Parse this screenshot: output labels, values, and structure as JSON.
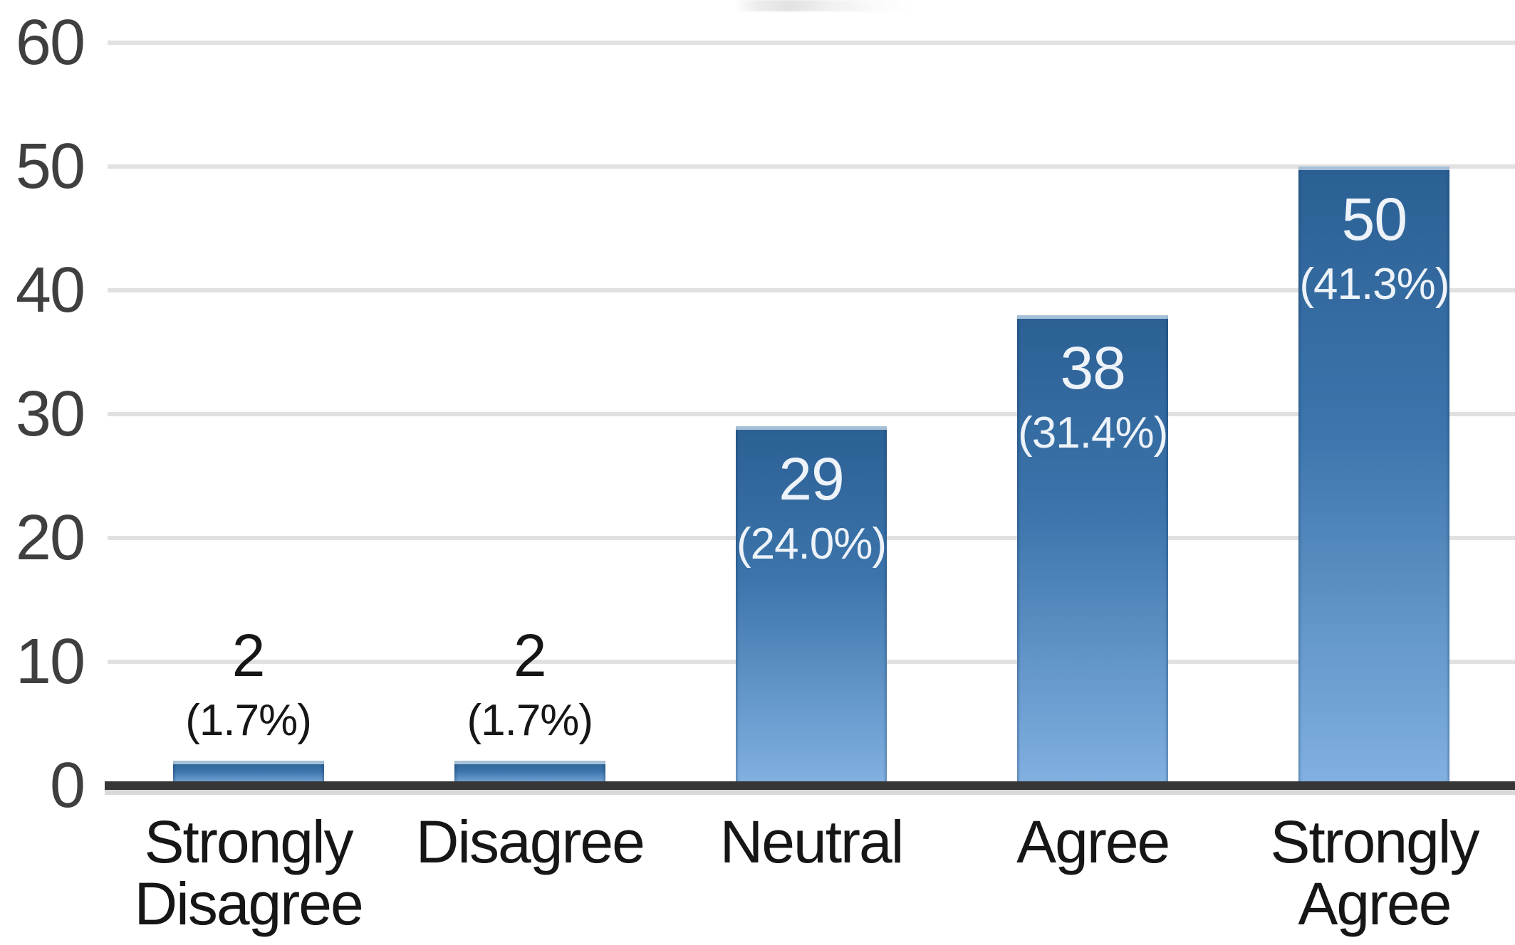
{
  "page": {
    "background": "#ffffff",
    "note_top_fragment": "cropped remnant of chart title (illegible)"
  },
  "chart_data": {
    "type": "bar",
    "title": "",
    "xlabel": "",
    "ylabel": "",
    "categories": [
      "Strongly Disagree",
      "Disagree",
      "Neutral",
      "Agree",
      "Strongly Agree"
    ],
    "values": [
      2,
      2,
      29,
      38,
      50
    ],
    "value_labels": [
      "2",
      "2",
      "29",
      "38",
      "50"
    ],
    "percent_labels": [
      "(1.7%)",
      "(1.7%)",
      "(24.0%)",
      "(31.4%)",
      "(41.3%)"
    ],
    "label_placement": [
      "above",
      "above",
      "inside",
      "inside",
      "inside"
    ],
    "ylim": [
      0,
      60
    ],
    "yticks": [
      0,
      10,
      20,
      30,
      40,
      50,
      60
    ],
    "grid": true,
    "legend": "none",
    "colors": {
      "bar_top": "#2b6094",
      "bar_bottom": "#82b1e2",
      "inside_label": "#edf3f9",
      "outside_label": "#161616",
      "axis_tick_label": "#3f3f3f",
      "category_label": "#161616",
      "gridline": "#e1e1e1",
      "baseline": "#363636"
    }
  }
}
